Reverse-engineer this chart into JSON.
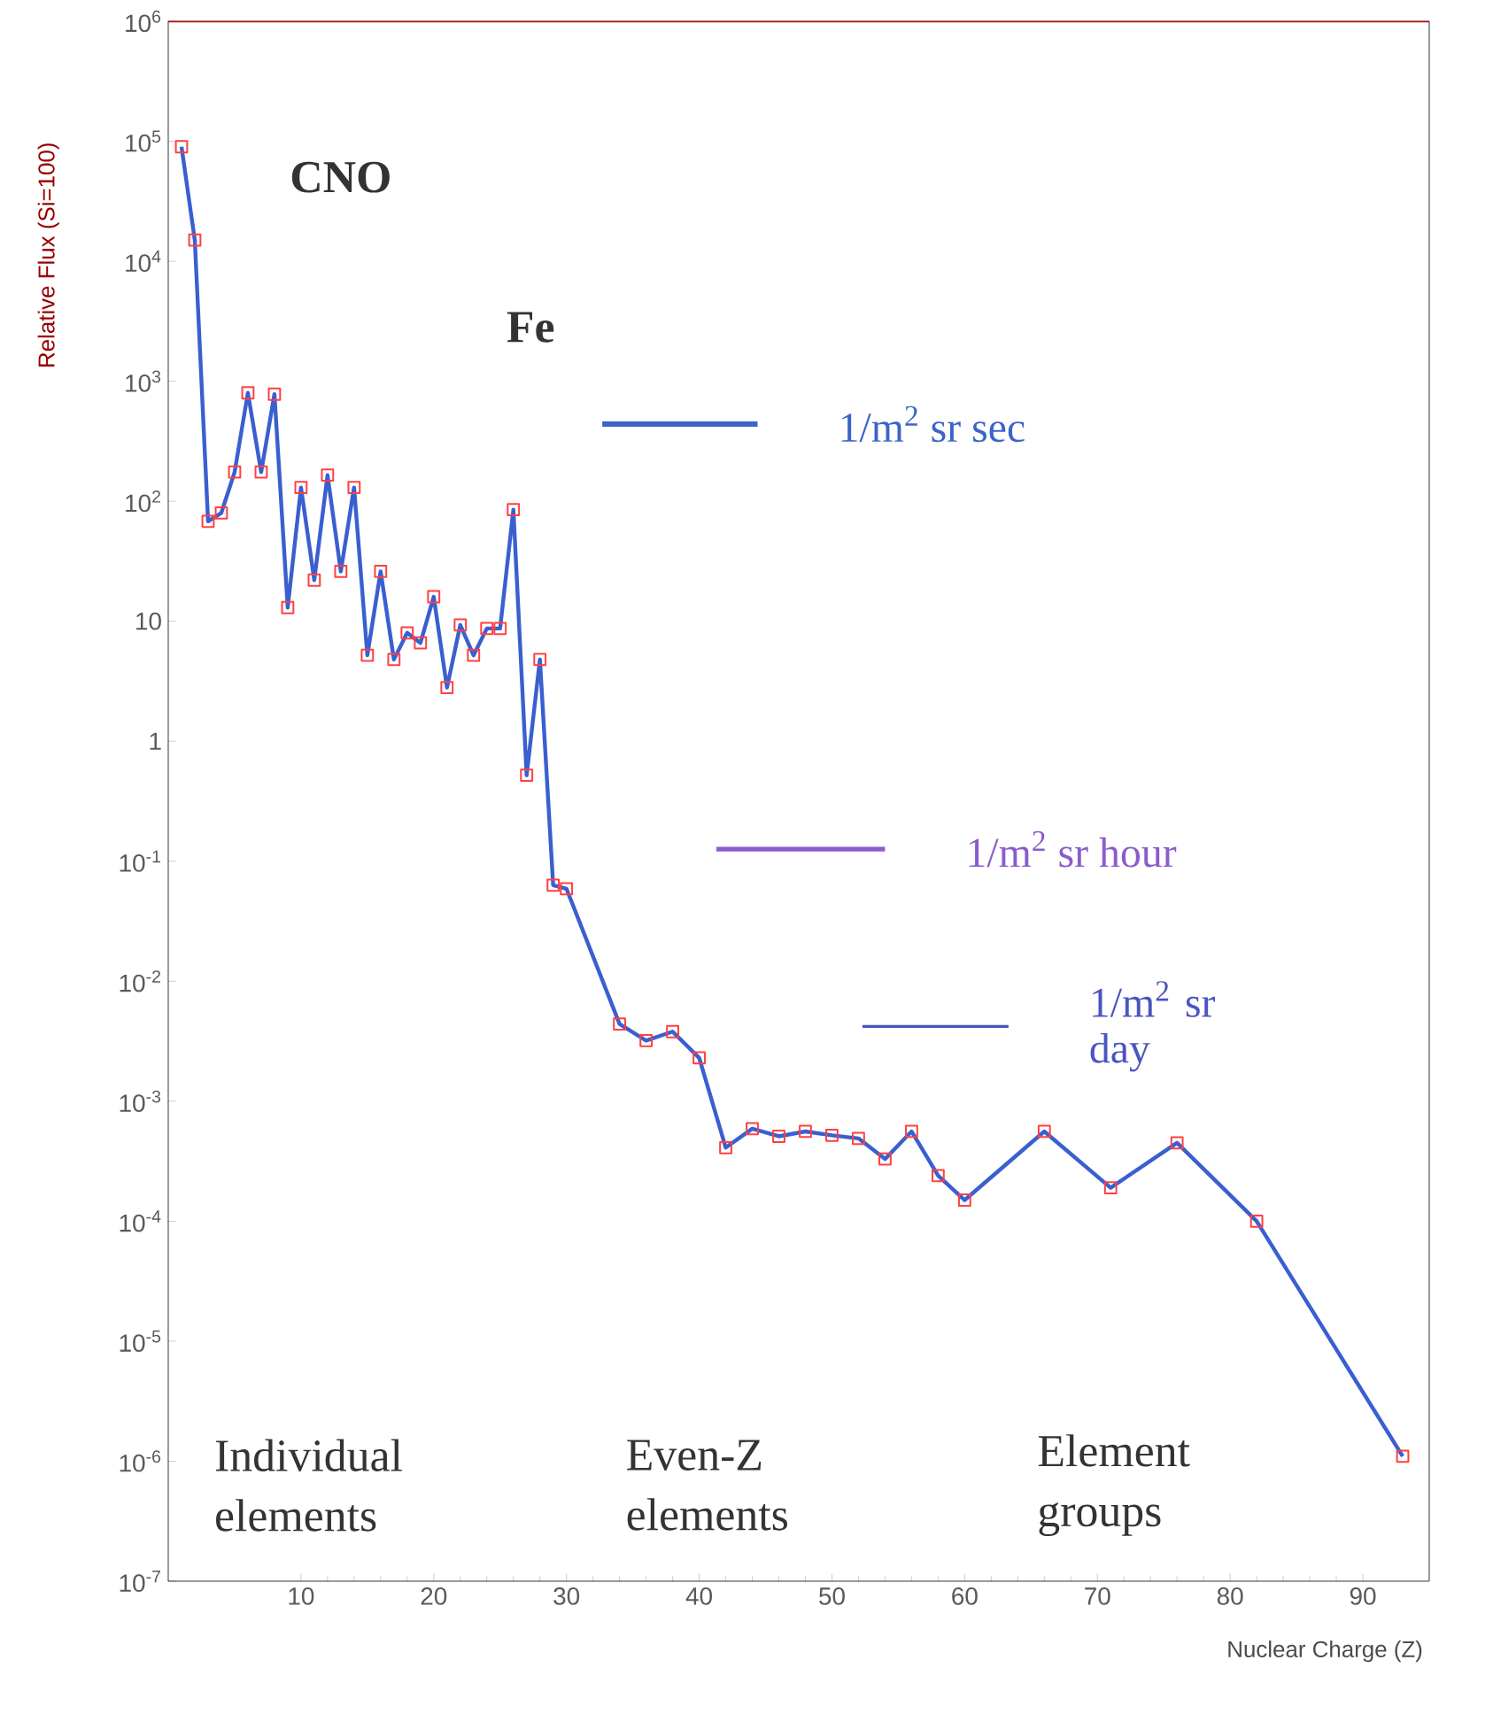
{
  "chart_data": {
    "type": "line",
    "xlabel": "Nuclear Charge (Z)",
    "ylabel": "Relative Flux (Si=100)",
    "annotations": [
      "CNO",
      "Fe",
      "Individual elements",
      "Even-Z elements",
      "Element groups"
    ],
    "log": "y",
    "grid": false,
    "line_style": "solid",
    "xlim": [
      0,
      95
    ],
    "xticks": [
      10,
      20,
      30,
      40,
      50,
      60,
      70,
      80,
      90
    ],
    "ylim": [
      1e-07,
      1000000.0
    ],
    "yticks": [
      {
        "value": 1e-07,
        "label": "10$^{-7}$"
      },
      {
        "value": 1e-06,
        "label": "10$^{-6}$"
      },
      {
        "value": 1e-05,
        "label": "10$^{-5}$"
      },
      {
        "value": 0.0001,
        "label": "10$^{-4}$"
      },
      {
        "value": 0.001,
        "label": "10$^{-3}$"
      },
      {
        "value": 0.01,
        "label": "10$^{-2}$"
      },
      {
        "value": 0.1,
        "label": "10$^{-1}$"
      },
      1,
      10,
      {
        "value": 100,
        "label": "10$^{2}$"
      },
      {
        "value": 1000,
        "label": "10$^{3}$"
      },
      {
        "value": 10000,
        "label": "10$^{4}$"
      },
      {
        "value": 100000,
        "label": "10$^{5}$"
      },
      {
        "value": 1000000,
        "label": "10$^{6}$"
      }
    ],
    "series": [
      {
        "color": "#3a5fd0",
        "marker": "square",
        "x": [
          1,
          2,
          3,
          4,
          5,
          6,
          7,
          8,
          9,
          10,
          11,
          12,
          13,
          14,
          15,
          16,
          17,
          18,
          19,
          20,
          21,
          22,
          23,
          24,
          25,
          26,
          27,
          28,
          29,
          30,
          34,
          36,
          38,
          40,
          42,
          44,
          46,
          48,
          50,
          52,
          54,
          56,
          58,
          60,
          66,
          71,
          76,
          82,
          93
        ],
        "values": [
          90000,
          15000,
          68,
          80,
          175,
          800,
          175,
          780,
          13,
          130,
          22,
          165,
          26,
          130,
          5.2,
          26,
          4.8,
          8,
          6.6,
          16,
          2.8,
          9.3,
          5.2,
          8.7,
          8.7,
          85,
          0.52,
          4.8,
          0.063,
          0.059,
          0.0044,
          0.0032,
          0.0038,
          0.0023,
          0.00041,
          0.00059,
          0.00051,
          0.00056,
          0.00052,
          0.00049,
          0.00033,
          0.00056,
          0.00024,
          0.00015,
          0.00056,
          0.00019,
          0.00045,
          0.0001,
          1.1e-06
        ]
      },
      {
        "name": "1/m$^{2}$ sr sec",
        "color": "#3b64c8",
        "marker": "none",
        "x": [
          32.7,
          44.4
        ],
        "values": [
          440,
          440
        ]
      },
      {
        "name": "1/m$^{2}$ sr hour",
        "color": "#8a5ccc",
        "marker": "none",
        "x": [
          41.3,
          54
        ],
        "values": [
          0.126,
          0.126
        ]
      },
      {
        "name": "1/m$^{2}$ sr day",
        "color": "#4a55c0",
        "marker": "none",
        "x": [
          52.3,
          63.3
        ],
        "values": [
          0.0042,
          0.0042
        ]
      }
    ]
  }
}
